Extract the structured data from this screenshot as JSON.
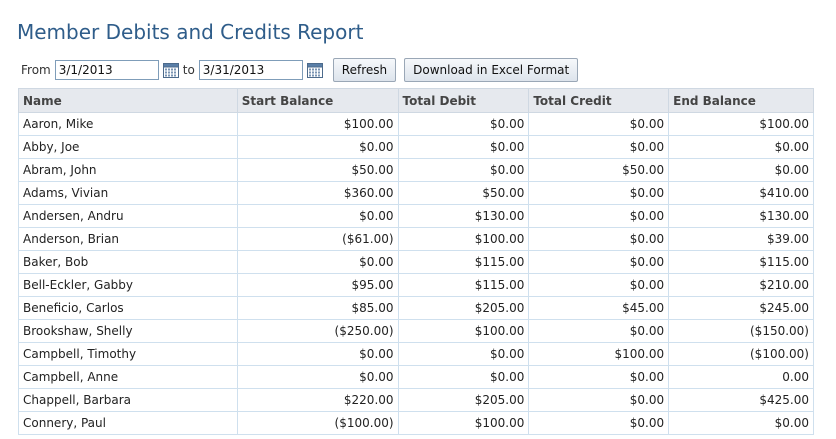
{
  "page": {
    "title": "Member Debits and Credits Report"
  },
  "filters": {
    "from_label": "From",
    "from_value": "3/1/2013",
    "to_label": "to",
    "to_value": "3/31/2013",
    "calendar_icon": "calendar-icon",
    "refresh_label": "Refresh",
    "download_label": "Download in Excel Format"
  },
  "table": {
    "columns": [
      "Name",
      "Start Balance",
      "Total Debit",
      "Total Credit",
      "End Balance"
    ],
    "rows": [
      [
        "Aaron, Mike",
        "$100.00",
        "$0.00",
        "$0.00",
        "$100.00"
      ],
      [
        "Abby, Joe",
        "$0.00",
        "$0.00",
        "$0.00",
        "$0.00"
      ],
      [
        "Abram, John",
        "$50.00",
        "$0.00",
        "$50.00",
        "$0.00"
      ],
      [
        "Adams, Vivian",
        "$360.00",
        "$50.00",
        "$0.00",
        "$410.00"
      ],
      [
        "Andersen, Andru",
        "$0.00",
        "$130.00",
        "$0.00",
        "$130.00"
      ],
      [
        "Anderson, Brian",
        "($61.00)",
        "$100.00",
        "$0.00",
        "$39.00"
      ],
      [
        "Baker, Bob",
        "$0.00",
        "$115.00",
        "$0.00",
        "$115.00"
      ],
      [
        "Bell-Eckler, Gabby",
        "$95.00",
        "$115.00",
        "$0.00",
        "$210.00"
      ],
      [
        "Beneficio, Carlos",
        "$85.00",
        "$205.00",
        "$45.00",
        "$245.00"
      ],
      [
        "Brookshaw, Shelly",
        "($250.00)",
        "$100.00",
        "$0.00",
        "($150.00)"
      ],
      [
        "Campbell, Timothy",
        "$0.00",
        "$0.00",
        "$100.00",
        "($100.00)"
      ],
      [
        "Campbell, Anne",
        "$0.00",
        "$0.00",
        "$0.00",
        "0.00"
      ],
      [
        "Chappell, Barbara",
        "$220.00",
        "$205.00",
        "$0.00",
        "$425.00"
      ],
      [
        "Connery, Paul",
        "($100.00)",
        "$100.00",
        "$0.00",
        "$0.00"
      ]
    ]
  },
  "colors": {
    "title": "#2f5d8a",
    "header_bg": "#e6e9ee",
    "cell_border": "#cfe0ee"
  }
}
